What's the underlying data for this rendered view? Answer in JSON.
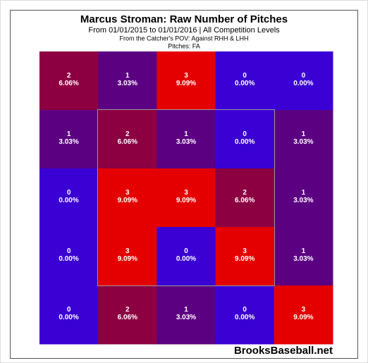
{
  "chart_data": {
    "type": "heatmap",
    "title": "Marcus Stroman: Raw Number of Pitches",
    "subtitle": "From 01/01/2015 to 01/01/2016 | All Competition Levels",
    "notes": [
      "From the Catcher's POV:  Against RHH & LHH",
      "Pitches:  FA"
    ],
    "source": "BrooksBaseball.net",
    "colors": [
      "#3a00d4",
      "#5c0082",
      "#8c0042",
      "#e50000"
    ],
    "values": [
      [
        2,
        1,
        3,
        0,
        0
      ],
      [
        1,
        2,
        1,
        0,
        1
      ],
      [
        0,
        3,
        3,
        2,
        1
      ],
      [
        0,
        3,
        0,
        3,
        1
      ],
      [
        0,
        2,
        1,
        0,
        3
      ]
    ],
    "percents": [
      [
        6.06,
        3.03,
        9.09,
        0,
        0
      ],
      [
        3.03,
        6.06,
        3.03,
        0,
        3.03
      ],
      [
        0,
        9.09,
        9.09,
        6.06,
        3.03
      ],
      [
        0,
        9.09,
        0,
        9.09,
        3.03
      ],
      [
        0,
        6.06,
        3.03,
        0,
        9.09
      ]
    ],
    "value_labels": [
      [
        "6.06%",
        "3.03%",
        "9.09%",
        "0.00%",
        "0.00%"
      ],
      [
        "3.03%",
        "6.06%",
        "3.03%",
        "0.00%",
        "3.03%"
      ],
      [
        "0.00%",
        "9.09%",
        "9.09%",
        "6.06%",
        "3.03%"
      ],
      [
        "0.00%",
        "9.09%",
        "0.00%",
        "9.09%",
        "3.03%"
      ],
      [
        "0.00%",
        "6.06%",
        "3.03%",
        "0.00%",
        "9.09%"
      ]
    ]
  }
}
